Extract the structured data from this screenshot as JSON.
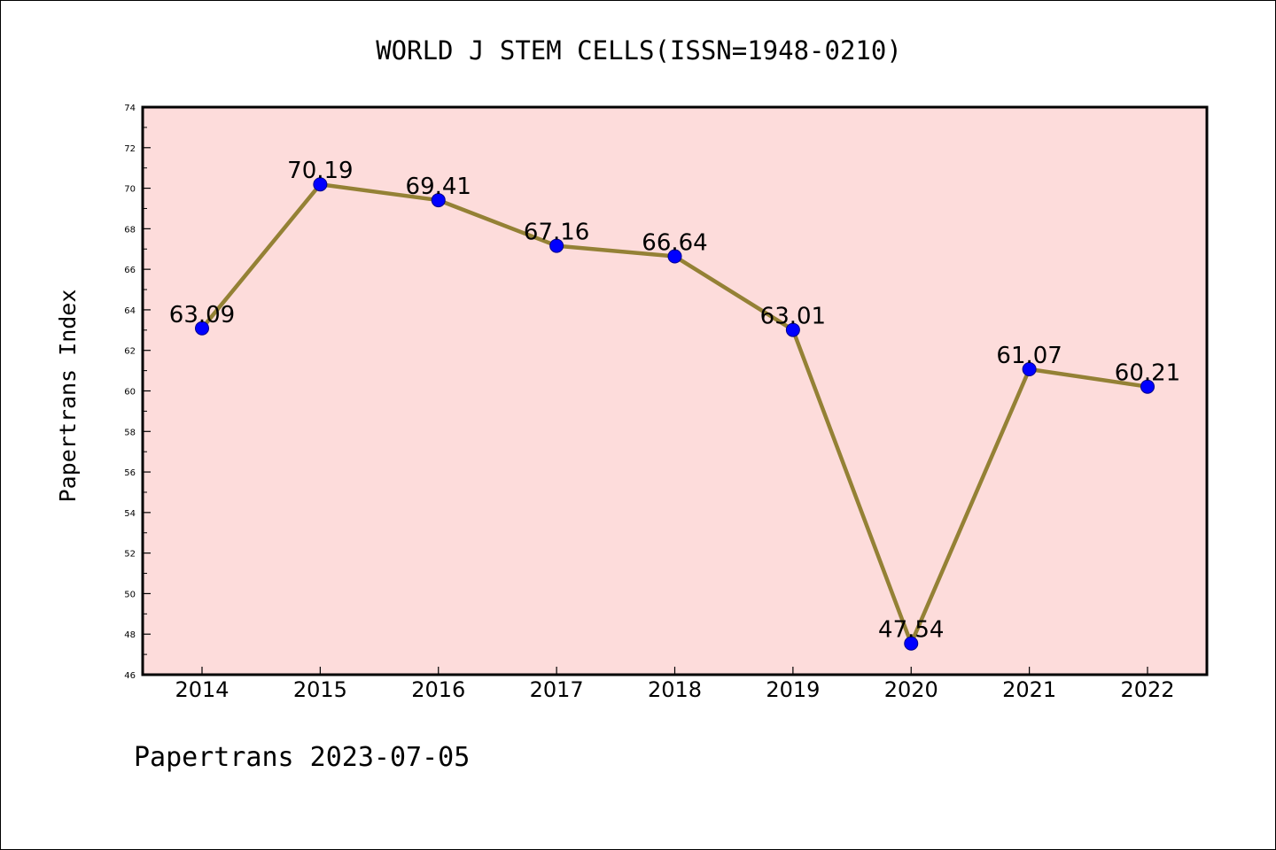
{
  "chart_data": {
    "type": "line",
    "title": "WORLD J STEM CELLS(ISSN=1948-0210)",
    "xlabel": "",
    "ylabel": "Papertrans Index",
    "categories": [
      "2014",
      "2015",
      "2016",
      "2017",
      "2018",
      "2019",
      "2020",
      "2021",
      "2022"
    ],
    "series": [
      {
        "values": [
          63.09,
          70.19,
          69.41,
          67.16,
          66.64,
          63.01,
          47.54,
          61.07,
          60.21
        ],
        "data_labels": [
          "63.09",
          "70.19",
          "69.41",
          "67.16",
          "66.64",
          "63.01",
          "47.54",
          "61.07",
          "60.21"
        ]
      }
    ],
    "ylim": [
      46,
      74
    ],
    "yticks": [
      "46",
      "48",
      "50",
      "52",
      "54",
      "56",
      "58",
      "60",
      "62",
      "64",
      "66",
      "68",
      "70",
      "72",
      "74"
    ],
    "grid": false,
    "legend": "none",
    "colors": {
      "plot_background": "#fddcdb",
      "line": "#948135",
      "marker": "#0000ff",
      "marker_edge": "#00008b"
    }
  },
  "footer": {
    "text": "Papertrans 2023-07-05"
  }
}
